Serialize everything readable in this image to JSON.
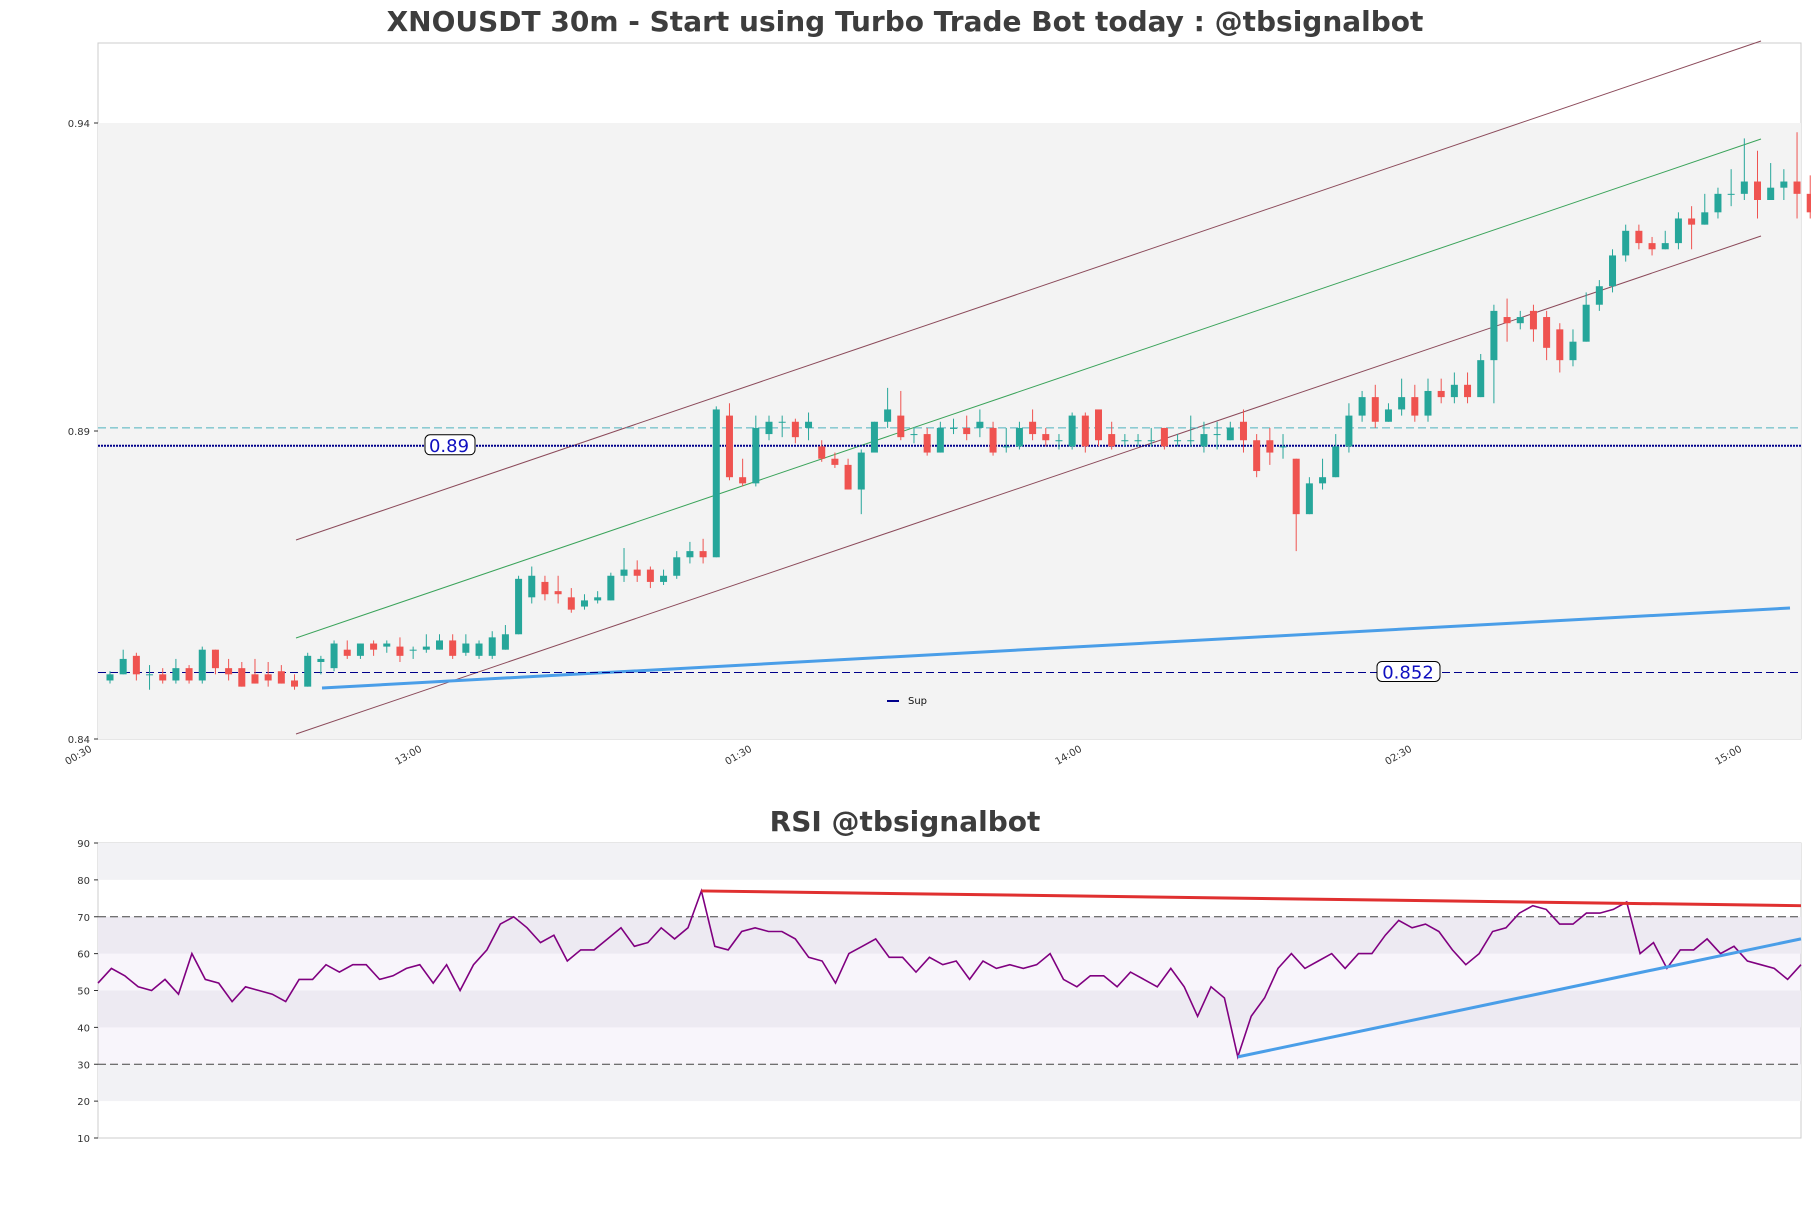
{
  "chart_data": [
    {
      "type": "candlestick",
      "title": "XNOUSDT 30m - Start using Turbo Trade Bot today : @tbsignalbot",
      "y_ticks": [
        "0.84",
        "0.89",
        "0.94"
      ],
      "ylim": [
        0.84,
        0.953
      ],
      "x_ticks": [
        "00:30",
        "13:00",
        "01:30",
        "14:00",
        "02:30",
        "15:00"
      ],
      "shaded_band": [
        0.84,
        0.94
      ],
      "levels": [
        {
          "label": "0.89",
          "value": 0.8876,
          "style": "dotted",
          "color": "#00008b"
        },
        {
          "label": "0.852",
          "value": 0.8508,
          "style": "dashed",
          "color": "#00008b"
        }
      ],
      "resistance_dashed": 0.8905,
      "legend": [
        {
          "label": "Sup",
          "color": "#00008b"
        }
      ],
      "candles": [
        [
          0.8495,
          0.8505,
          0.849,
          0.851
        ],
        [
          0.8505,
          0.853,
          0.8505,
          0.8545
        ],
        [
          0.8535,
          0.8505,
          0.8495,
          0.854
        ],
        [
          0.8505,
          0.8505,
          0.848,
          0.852
        ],
        [
          0.8505,
          0.8495,
          0.849,
          0.8515
        ],
        [
          0.8495,
          0.8515,
          0.849,
          0.853
        ],
        [
          0.8515,
          0.8495,
          0.849,
          0.852
        ],
        [
          0.8495,
          0.8545,
          0.849,
          0.855
        ],
        [
          0.8545,
          0.8515,
          0.8505,
          0.8545
        ],
        [
          0.8515,
          0.8505,
          0.8495,
          0.853
        ],
        [
          0.8515,
          0.8485,
          0.8485,
          0.8525
        ],
        [
          0.8505,
          0.849,
          0.849,
          0.853
        ],
        [
          0.8505,
          0.8495,
          0.8485,
          0.8525
        ],
        [
          0.851,
          0.849,
          0.849,
          0.852
        ],
        [
          0.8495,
          0.8485,
          0.848,
          0.8505
        ],
        [
          0.8485,
          0.8535,
          0.8485,
          0.854
        ],
        [
          0.8525,
          0.853,
          0.8505,
          0.8535
        ],
        [
          0.8515,
          0.8555,
          0.851,
          0.856
        ],
        [
          0.8545,
          0.8535,
          0.853,
          0.856
        ],
        [
          0.8535,
          0.8555,
          0.853,
          0.8555
        ],
        [
          0.8555,
          0.8545,
          0.8535,
          0.856
        ],
        [
          0.855,
          0.8555,
          0.854,
          0.856
        ],
        [
          0.855,
          0.8535,
          0.8525,
          0.8565
        ],
        [
          0.8545,
          0.8545,
          0.853,
          0.855
        ],
        [
          0.8545,
          0.855,
          0.854,
          0.857
        ],
        [
          0.8545,
          0.856,
          0.8545,
          0.857
        ],
        [
          0.856,
          0.8535,
          0.853,
          0.857
        ],
        [
          0.854,
          0.8555,
          0.8535,
          0.857
        ],
        [
          0.8535,
          0.8555,
          0.853,
          0.856
        ],
        [
          0.8535,
          0.8565,
          0.853,
          0.8575
        ],
        [
          0.8545,
          0.857,
          0.8545,
          0.8585
        ],
        [
          0.857,
          0.866,
          0.857,
          0.8665
        ],
        [
          0.863,
          0.8665,
          0.862,
          0.868
        ],
        [
          0.8655,
          0.8635,
          0.8625,
          0.8665
        ],
        [
          0.864,
          0.8635,
          0.862,
          0.8665
        ],
        [
          0.863,
          0.861,
          0.8605,
          0.8645
        ],
        [
          0.8615,
          0.8625,
          0.861,
          0.8635
        ],
        [
          0.8625,
          0.863,
          0.862,
          0.864
        ],
        [
          0.8625,
          0.8665,
          0.8625,
          0.867
        ],
        [
          0.8665,
          0.8675,
          0.8655,
          0.871
        ],
        [
          0.8675,
          0.8665,
          0.8655,
          0.869
        ],
        [
          0.8675,
          0.8655,
          0.8645,
          0.868
        ],
        [
          0.8655,
          0.8665,
          0.865,
          0.8675
        ],
        [
          0.8665,
          0.8695,
          0.866,
          0.8705
        ],
        [
          0.8695,
          0.8705,
          0.8685,
          0.872
        ],
        [
          0.8705,
          0.8695,
          0.8685,
          0.8725
        ],
        [
          0.8695,
          0.8935,
          0.8695,
          0.894
        ],
        [
          0.8925,
          0.8825,
          0.882,
          0.8945
        ],
        [
          0.8825,
          0.8815,
          0.881,
          0.8855
        ],
        [
          0.8815,
          0.8905,
          0.881,
          0.8925
        ],
        [
          0.8895,
          0.8915,
          0.8885,
          0.8925
        ],
        [
          0.8915,
          0.8915,
          0.889,
          0.8925
        ],
        [
          0.8915,
          0.889,
          0.888,
          0.892
        ],
        [
          0.8905,
          0.8915,
          0.8885,
          0.893
        ],
        [
          0.8875,
          0.8855,
          0.885,
          0.8885
        ],
        [
          0.8855,
          0.8845,
          0.884,
          0.8865
        ],
        [
          0.8845,
          0.8805,
          0.8805,
          0.8855
        ],
        [
          0.8805,
          0.8865,
          0.8765,
          0.887
        ],
        [
          0.8865,
          0.8915,
          0.887,
          0.8915
        ],
        [
          0.8915,
          0.8935,
          0.8905,
          0.897
        ],
        [
          0.8925,
          0.889,
          0.8885,
          0.8965
        ],
        [
          0.8895,
          0.8895,
          0.888,
          0.8905
        ],
        [
          0.8895,
          0.8865,
          0.886,
          0.8905
        ],
        [
          0.8865,
          0.8905,
          0.8865,
          0.8915
        ],
        [
          0.8905,
          0.8905,
          0.8895,
          0.892
        ],
        [
          0.8905,
          0.8895,
          0.8885,
          0.8925
        ],
        [
          0.8905,
          0.8915,
          0.889,
          0.8935
        ],
        [
          0.8905,
          0.8865,
          0.886,
          0.8915
        ],
        [
          0.8875,
          0.8875,
          0.8865,
          0.8905
        ],
        [
          0.8875,
          0.8905,
          0.887,
          0.8915
        ],
        [
          0.8915,
          0.8895,
          0.8885,
          0.8935
        ],
        [
          0.8895,
          0.8885,
          0.8875,
          0.8905
        ],
        [
          0.8885,
          0.8885,
          0.887,
          0.8895
        ],
        [
          0.8875,
          0.8925,
          0.887,
          0.893
        ],
        [
          0.8925,
          0.8875,
          0.8865,
          0.893
        ],
        [
          0.8935,
          0.8885,
          0.8875,
          0.8935
        ],
        [
          0.8895,
          0.8875,
          0.887,
          0.8915
        ],
        [
          0.8885,
          0.8885,
          0.8875,
          0.8895
        ],
        [
          0.8885,
          0.8885,
          0.8875,
          0.8895
        ],
        [
          0.8885,
          0.8885,
          0.8875,
          0.8905
        ],
        [
          0.8905,
          0.8875,
          0.887,
          0.8905
        ],
        [
          0.8885,
          0.8885,
          0.8875,
          0.8895
        ],
        [
          0.8885,
          0.8885,
          0.8875,
          0.8925
        ],
        [
          0.8875,
          0.8895,
          0.8865,
          0.8915
        ],
        [
          0.8895,
          0.8895,
          0.887,
          0.8915
        ],
        [
          0.8885,
          0.8905,
          0.8885,
          0.8915
        ],
        [
          0.8915,
          0.8885,
          0.8865,
          0.8935
        ],
        [
          0.8885,
          0.8835,
          0.8825,
          0.8895
        ],
        [
          0.8885,
          0.8865,
          0.8845,
          0.8905
        ],
        [
          0.8875,
          0.8875,
          0.8855,
          0.8895
        ],
        [
          0.8855,
          0.8765,
          0.8705,
          0.8855
        ],
        [
          0.8765,
          0.8815,
          0.8765,
          0.8825
        ],
        [
          0.8815,
          0.8825,
          0.8805,
          0.8855
        ],
        [
          0.8825,
          0.8875,
          0.8825,
          0.8895
        ],
        [
          0.8875,
          0.8925,
          0.8865,
          0.8945
        ],
        [
          0.8925,
          0.8955,
          0.8915,
          0.8965
        ],
        [
          0.8955,
          0.8915,
          0.8905,
          0.8975
        ],
        [
          0.8915,
          0.8935,
          0.8915,
          0.8945
        ],
        [
          0.8935,
          0.8955,
          0.8925,
          0.8985
        ],
        [
          0.8955,
          0.8925,
          0.8915,
          0.8975
        ],
        [
          0.8925,
          0.8965,
          0.8915,
          0.8985
        ],
        [
          0.8965,
          0.8955,
          0.8945,
          0.8985
        ],
        [
          0.8955,
          0.8975,
          0.8945,
          0.8995
        ],
        [
          0.8975,
          0.8955,
          0.8945,
          0.8995
        ],
        [
          0.8955,
          0.9015,
          0.8955,
          0.9025
        ],
        [
          0.9015,
          0.9095,
          0.8945,
          0.9105
        ],
        [
          0.9085,
          0.9075,
          0.9045,
          0.9115
        ],
        [
          0.9075,
          0.9085,
          0.9065,
          0.9095
        ],
        [
          0.9095,
          0.9065,
          0.9045,
          0.9105
        ],
        [
          0.9085,
          0.9035,
          0.9015,
          0.9095
        ],
        [
          0.9065,
          0.9015,
          0.8995,
          0.9075
        ],
        [
          0.9015,
          0.9045,
          0.9005,
          0.9065
        ],
        [
          0.9045,
          0.9105,
          0.9045,
          0.9125
        ],
        [
          0.9105,
          0.9135,
          0.9095,
          0.9145
        ],
        [
          0.9135,
          0.9185,
          0.9125,
          0.9195
        ],
        [
          0.9185,
          0.9225,
          0.9175,
          0.9235
        ],
        [
          0.9225,
          0.9205,
          0.9195,
          0.9235
        ],
        [
          0.9205,
          0.9195,
          0.9185,
          0.9215
        ],
        [
          0.9195,
          0.9205,
          0.9195,
          0.9225
        ],
        [
          0.9205,
          0.9245,
          0.9195,
          0.9255
        ],
        [
          0.9245,
          0.9235,
          0.9195,
          0.9265
        ],
        [
          0.9235,
          0.9255,
          0.9235,
          0.9285
        ],
        [
          0.9255,
          0.9285,
          0.9245,
          0.9295
        ],
        [
          0.9285,
          0.9285,
          0.9265,
          0.9325
        ],
        [
          0.9285,
          0.9305,
          0.9275,
          0.9375
        ],
        [
          0.9305,
          0.9275,
          0.9245,
          0.9355
        ],
        [
          0.9275,
          0.9295,
          0.9275,
          0.9335
        ],
        [
          0.9295,
          0.9305,
          0.9275,
          0.9325
        ],
        [
          0.9305,
          0.9285,
          0.9245,
          0.9385
        ],
        [
          0.9285,
          0.9255,
          0.9245,
          0.9315
        ],
        [
          0.9255,
          0.9295,
          0.9245,
          0.9305
        ],
        [
          0.9295,
          0.9315,
          0.9275,
          0.9325
        ],
        [
          0.9315,
          0.9295,
          0.9285,
          0.9325
        ],
        [
          0.9295,
          0.9285,
          0.9275,
          0.9305
        ],
        [
          0.9285,
          0.9275,
          0.9265,
          0.9305
        ],
        [
          0.9275,
          0.9295,
          0.9255,
          0.9305
        ]
      ]
    },
    {
      "type": "line",
      "title": "RSI @tbsignalbot",
      "y_ticks": [
        "10",
        "20",
        "30",
        "40",
        "50",
        "60",
        "70",
        "80",
        "90"
      ],
      "ylim": [
        10,
        90
      ],
      "reference_lines": [
        30,
        70
      ],
      "series": [
        {
          "color": "#800080",
          "values": [
            52,
            56,
            54,
            51,
            50,
            53,
            49,
            60,
            53,
            52,
            47,
            51,
            50,
            49,
            47,
            53,
            53,
            57,
            55,
            57,
            57,
            53,
            54,
            56,
            57,
            52,
            57,
            50,
            57,
            61,
            68,
            70,
            67,
            63,
            65,
            58,
            61,
            61,
            64,
            67,
            62,
            63,
            67,
            64,
            67,
            77,
            62,
            61,
            66,
            67,
            66,
            66,
            64,
            59,
            58,
            52,
            60,
            62,
            64,
            59,
            59,
            55,
            59,
            57,
            58,
            53,
            58,
            56,
            57,
            56,
            57,
            60,
            53,
            51,
            54,
            54,
            51,
            55,
            53,
            51,
            56,
            51,
            43,
            51,
            48,
            32,
            43,
            48,
            56,
            60,
            56,
            58,
            60,
            56,
            60,
            60,
            65,
            69,
            67,
            68,
            66,
            61,
            57,
            60,
            66,
            67,
            71,
            73,
            72,
            68,
            68,
            71,
            71,
            72,
            74,
            60,
            63,
            56,
            61,
            61,
            64,
            60,
            62,
            58,
            57,
            56,
            53,
            57
          ]
        }
      ],
      "trendlines": [
        {
          "color": "#e03030",
          "from": [
            45,
            77
          ],
          "to": [
            130,
            73
          ]
        },
        {
          "color": "#4a9ee8",
          "from": [
            85,
            32
          ],
          "to": [
            130,
            64
          ]
        }
      ]
    }
  ]
}
